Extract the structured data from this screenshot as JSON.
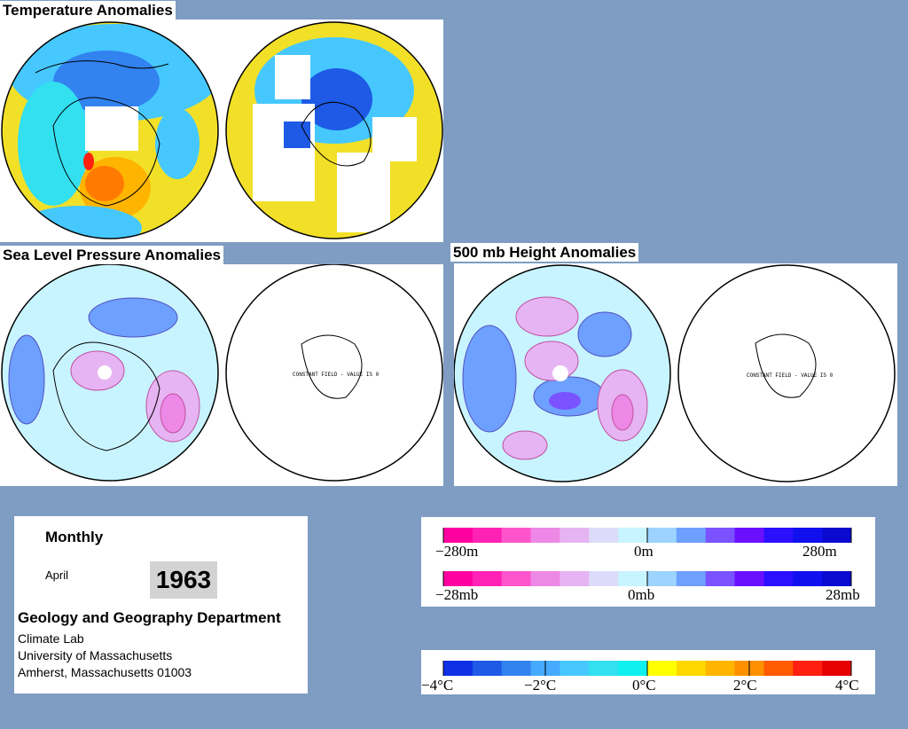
{
  "sections": {
    "temperature": "Temperature Anomalies",
    "slp": "Sea Level Pressure Anomalies",
    "height": "500 mb Height Anomalies"
  },
  "map_notes": {
    "constant_field_slp": "CONSTANT FIELD - VALUE IS 0",
    "constant_field_height": "CONSTANT FIELD - VALUE IS 0"
  },
  "info": {
    "period": "Monthly",
    "month": "April",
    "year": "1963",
    "department": "Geology and Geography Department",
    "lab": "Climate Lab",
    "university": "University of Massachusetts",
    "city": "Amherst, Massachusetts 01003"
  },
  "legends": {
    "height": {
      "left": "−280m",
      "mid": "0m",
      "right": "280m"
    },
    "pressure": {
      "left": "−28mb",
      "mid": "0mb",
      "right": "28mb"
    },
    "temperature": {
      "t1": "−4°C",
      "t2": "−2°C",
      "t3": "0°C",
      "t4": "2°C",
      "t5": "4°C"
    }
  },
  "colors": {
    "pressure_height_scale": [
      "#ff00a0",
      "#ff22b4",
      "#ff55cc",
      "#ee88e6",
      "#e6b4f2",
      "#dcdcfa",
      "#c8f4ff",
      "#9cd4ff",
      "#6ea0ff",
      "#7a52ff",
      "#6a10ff",
      "#2a10ff",
      "#1010ee",
      "#0a0ad0"
    ],
    "temperature_scale": [
      "#1030e6",
      "#1e5ae6",
      "#3282f0",
      "#46aaff",
      "#46c8ff",
      "#32e0f0",
      "#10f0f0",
      "#ffff00",
      "#ffd800",
      "#ffb400",
      "#ff9000",
      "#ff5a00",
      "#ff2010",
      "#e60000"
    ],
    "background": "#7f9cc2"
  }
}
